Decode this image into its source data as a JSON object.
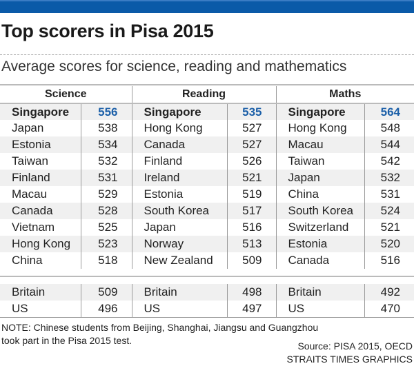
{
  "title": "Top scorers in Pisa 2015",
  "subtitle": "Average scores for science, reading and mathematics",
  "colors": {
    "top_bar": "#0a5aa8",
    "highlight_score": "#1b5fa8",
    "row_shade": "#f0f0f0"
  },
  "chart_data": {
    "type": "table",
    "columns": [
      "Science",
      "Reading",
      "Maths"
    ],
    "top_rows": [
      [
        [
          "Singapore",
          "556"
        ],
        [
          "Singapore",
          "535"
        ],
        [
          "Singapore",
          "564"
        ]
      ],
      [
        [
          "Japan",
          "538"
        ],
        [
          "Hong Kong",
          "527"
        ],
        [
          "Hong Kong",
          "548"
        ]
      ],
      [
        [
          "Estonia",
          "534"
        ],
        [
          "Canada",
          "527"
        ],
        [
          "Macau",
          "544"
        ]
      ],
      [
        [
          "Taiwan",
          "532"
        ],
        [
          "Finland",
          "526"
        ],
        [
          "Taiwan",
          "542"
        ]
      ],
      [
        [
          "Finland",
          "531"
        ],
        [
          "Ireland",
          "521"
        ],
        [
          "Japan",
          "532"
        ]
      ],
      [
        [
          "Macau",
          "529"
        ],
        [
          "Estonia",
          "519"
        ],
        [
          "China",
          "531"
        ]
      ],
      [
        [
          "Canada",
          "528"
        ],
        [
          "South Korea",
          "517"
        ],
        [
          "South Korea",
          "524"
        ]
      ],
      [
        [
          "Vietnam",
          "525"
        ],
        [
          "Japan",
          "516"
        ],
        [
          "Switzerland",
          "521"
        ]
      ],
      [
        [
          "Hong Kong",
          "523"
        ],
        [
          "Norway",
          "513"
        ],
        [
          "Estonia",
          "520"
        ]
      ],
      [
        [
          "China",
          "518"
        ],
        [
          "New Zealand",
          "509"
        ],
        [
          "Canada",
          "516"
        ]
      ]
    ],
    "comparison_rows": [
      [
        [
          "Britain",
          "509"
        ],
        [
          "Britain",
          "498"
        ],
        [
          "Britain",
          "492"
        ]
      ],
      [
        [
          "US",
          "496"
        ],
        [
          "US",
          "497"
        ],
        [
          "US",
          "470"
        ]
      ]
    ]
  },
  "note_lines": [
    "NOTE: Chinese students from Beijing, Shanghai, Jiangsu and Guangzhou",
    "took part in the Pisa 2015 test."
  ],
  "source_lines": [
    "Source: PISA 2015, OECD",
    "STRAITS TIMES GRAPHICS"
  ]
}
